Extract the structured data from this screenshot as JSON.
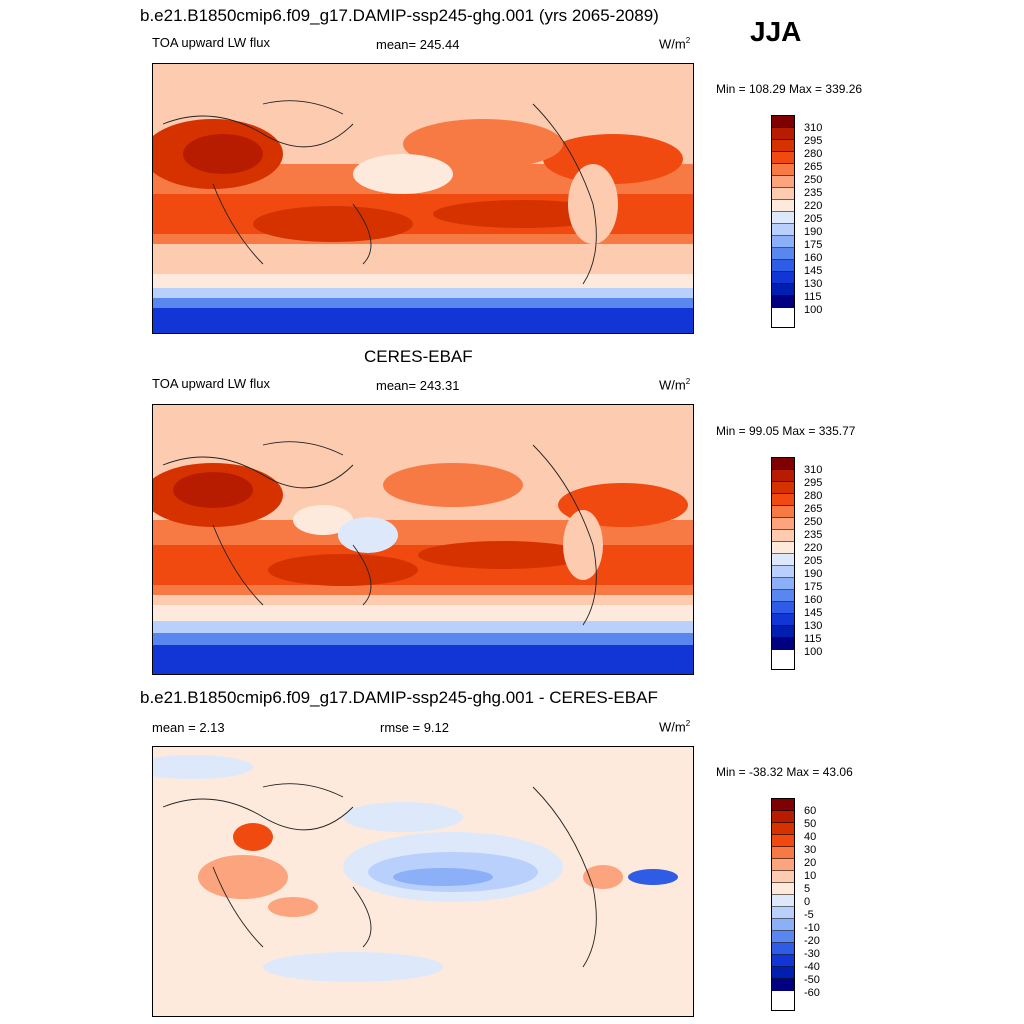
{
  "season": "JJA",
  "panels": [
    {
      "title": "b.e21.B1850cmip6.f09_g17.DAMIP-ssp245-ghg.001 (yrs 2065-2089)",
      "left_label": "TOA upward LW flux",
      "mid_label": "mean= 245.44",
      "units": "W/m",
      "units_sup": "2",
      "minmax": "Min = 108.29 Max = 339.26",
      "colorbar_ticks": [
        "310",
        "295",
        "280",
        "265",
        "250",
        "235",
        "220",
        "205",
        "190",
        "175",
        "160",
        "145",
        "130",
        "115",
        "100"
      ]
    },
    {
      "title": "CERES-EBAF",
      "left_label": "TOA upward LW flux",
      "mid_label": "mean= 243.31",
      "units": "W/m",
      "units_sup": "2",
      "minmax": "Min =  99.05 Max = 335.77",
      "colorbar_ticks": [
        "310",
        "295",
        "280",
        "265",
        "250",
        "235",
        "220",
        "205",
        "190",
        "175",
        "160",
        "145",
        "130",
        "115",
        "100"
      ]
    },
    {
      "title": "b.e21.B1850cmip6.f09_g17.DAMIP-ssp245-ghg.001 - CERES-EBAF",
      "left_label": "mean =   2.13",
      "mid_label": "rmse =   9.12",
      "units": "W/m",
      "units_sup": "2",
      "minmax": "Min = -38.32 Max =  43.06",
      "colorbar_ticks": [
        "60",
        "50",
        "40",
        "30",
        "20",
        "10",
        "5",
        "0",
        "-5",
        "-10",
        "-20",
        "-30",
        "-40",
        "-50",
        "-60"
      ]
    }
  ],
  "colors": {
    "flux_scale": [
      "#7f0000",
      "#b81c00",
      "#d63200",
      "#f04a10",
      "#f77a45",
      "#fba47d",
      "#fdcbb0",
      "#fdeadc",
      "#dde9fb",
      "#b8d0fb",
      "#8cb0f7",
      "#5a86ef",
      "#2f5ce6",
      "#1236d6",
      "#001eb0",
      "#000080"
    ],
    "diff_scale": [
      "#7f0000",
      "#b81c00",
      "#d63200",
      "#f04a10",
      "#f77a45",
      "#fba47d",
      "#fdcbb0",
      "#fdeadc",
      "#dde9fb",
      "#b8d0fb",
      "#8cb0f7",
      "#5a86ef",
      "#2f5ce6",
      "#1236d6",
      "#001eb0",
      "#000080"
    ]
  }
}
